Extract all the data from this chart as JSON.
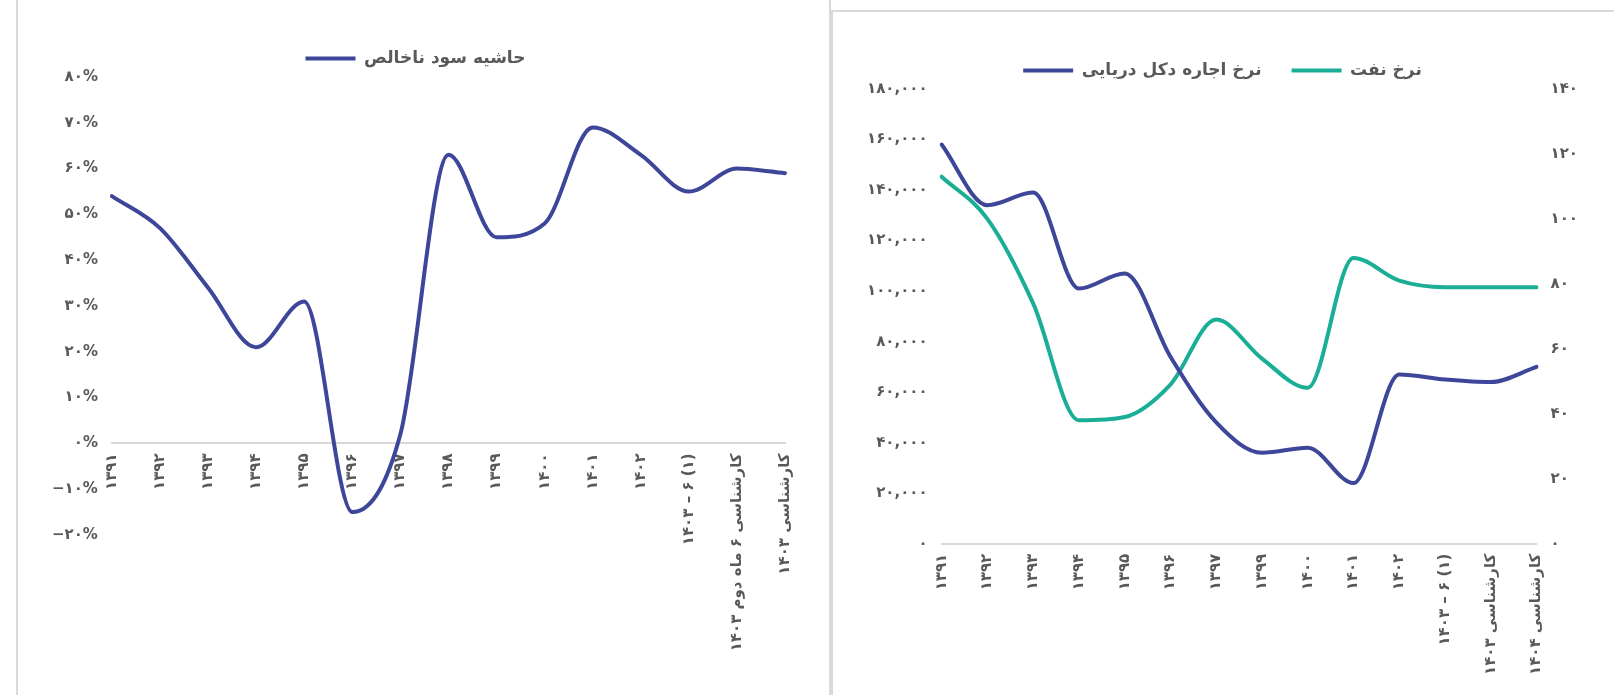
{
  "chart_data": [
    {
      "type": "line",
      "categories": [
        "۱۳۹۱",
        "۱۳۹۲",
        "۱۳۹۳",
        "۱۳۹۴",
        "۱۳۹۵",
        "۱۳۹۶",
        "۱۳۹۷",
        "۱۳۹۸",
        "۱۳۹۹",
        "۱۴۰۰",
        "۱۴۰۱",
        "۱۴۰۲",
        "۱۴۰۳ – ۶ (۱)",
        "کارشناسی ۶ ماه دوم ۱۴۰۳",
        "کارشناسی ۱۴۰۳"
      ],
      "series": [
        {
          "name": "حاشیه سود ناخالص",
          "color": "#3d4699",
          "values": [
            54,
            47,
            34,
            21,
            31,
            -15,
            2,
            63,
            45,
            48,
            69,
            63,
            55,
            60,
            59
          ]
        }
      ],
      "ylim": [
        -20,
        80
      ],
      "yticks": [
        {
          "value": -20,
          "label": "−۲۰%"
        },
        {
          "value": -10,
          "label": "−۱۰%"
        },
        {
          "value": 0,
          "label": "۰%"
        },
        {
          "value": 10,
          "label": "۱۰%"
        },
        {
          "value": 20,
          "label": "۲۰%"
        },
        {
          "value": 30,
          "label": "۳۰%"
        },
        {
          "value": 40,
          "label": "۴۰%"
        },
        {
          "value": 50,
          "label": "۵۰%"
        },
        {
          "value": 60,
          "label": "۶۰%"
        },
        {
          "value": 70,
          "label": "۷۰%"
        },
        {
          "value": 80,
          "label": "۸۰%"
        }
      ],
      "legend": "top",
      "marker": "none",
      "line_style": "solid",
      "grid": false
    },
    {
      "type": "line",
      "categories": [
        "۱۳۹۱",
        "۱۳۹۲",
        "۱۳۹۳",
        "۱۳۹۴",
        "۱۳۹۵",
        "۱۳۹۶",
        "۱۳۹۷",
        "۱۳۹۹",
        "۱۴۰۰",
        "۱۴۰۱",
        "۱۴۰۲",
        "۱۴۰۳ – ۶ (۱)",
        "کارشناسی ۱۴۰۳",
        "کارشناسی ۱۴۰۴"
      ],
      "series": [
        {
          "name": "نرخ اجاره دکل دریایی",
          "color": "#3d4699",
          "values": [
            158000,
            134000,
            139000,
            101000,
            107000,
            74000,
            48000,
            36000,
            38000,
            24000,
            67000,
            65000,
            64000,
            70000
          ]
        },
        {
          "name": "نرخ نفت",
          "color": "#1aae96",
          "axis": "y2",
          "values": [
            113,
            100,
            74,
            38,
            39,
            49,
            69,
            57,
            48,
            88,
            81,
            79,
            79,
            79
          ]
        }
      ],
      "ylim": [
        0,
        180000
      ],
      "yticks": [
        {
          "value": 0,
          "label": "۰"
        },
        {
          "value": 20000,
          "label": "۲۰,۰۰۰"
        },
        {
          "value": 40000,
          "label": "۴۰,۰۰۰"
        },
        {
          "value": 60000,
          "label": "۶۰,۰۰۰"
        },
        {
          "value": 80000,
          "label": "۸۰,۰۰۰"
        },
        {
          "value": 100000,
          "label": "۱۰۰,۰۰۰"
        },
        {
          "value": 120000,
          "label": "۱۲۰,۰۰۰"
        },
        {
          "value": 140000,
          "label": "۱۴۰,۰۰۰"
        },
        {
          "value": 160000,
          "label": "۱۶۰,۰۰۰"
        },
        {
          "value": 180000,
          "label": "۱۸۰,۰۰۰"
        }
      ],
      "y2lim": [
        0,
        140
      ],
      "y2ticks": [
        {
          "value": 0,
          "label": "۰"
        },
        {
          "value": 20,
          "label": "۲۰"
        },
        {
          "value": 40,
          "label": "۴۰"
        },
        {
          "value": 60,
          "label": "۶۰"
        },
        {
          "value": 80,
          "label": "۸۰"
        },
        {
          "value": 100,
          "label": "۱۰۰"
        },
        {
          "value": 120,
          "label": "۱۲۰"
        },
        {
          "value": 140,
          "label": "۱۴۰"
        }
      ],
      "legend": "top",
      "marker": "none",
      "line_style": "solid",
      "grid": false
    }
  ]
}
